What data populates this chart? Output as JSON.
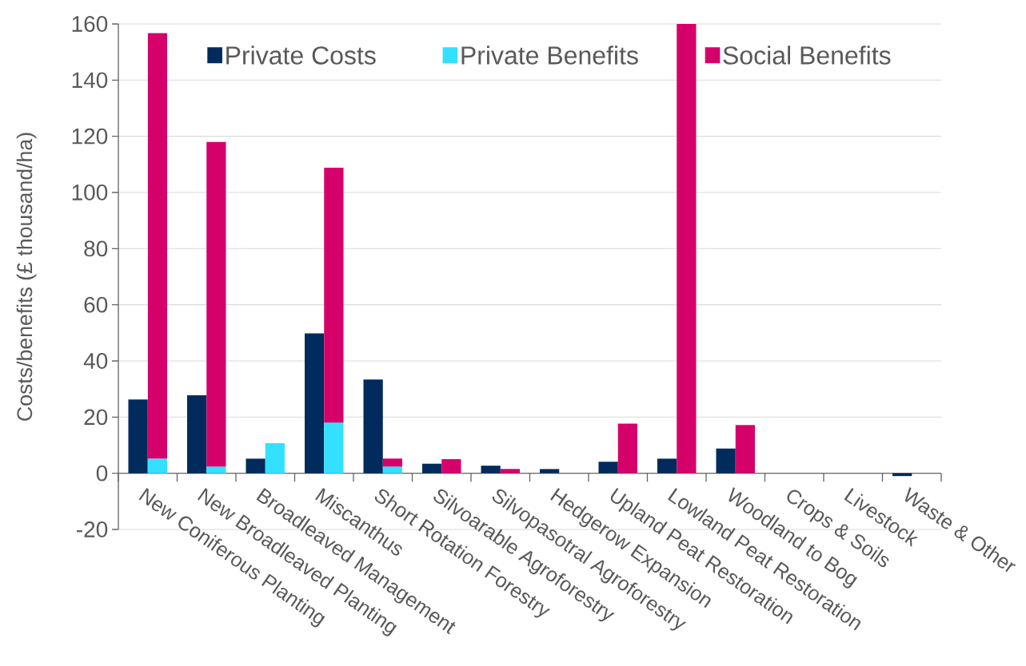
{
  "chart_data": {
    "type": "bar",
    "ylabel": "Costs/benefits (£ thousand/ha)",
    "categories": [
      "New Coniferous Planting",
      "New Broadleaved Planting",
      "Broadleaved Management",
      "Miscanthus",
      "Short Rotation Forestry",
      "Silvoarable Agroforestry",
      "Silvopasotral Agroforestry",
      "Hedgerow Expansion",
      "Upland Peat Restoration",
      "Lowland Peat Restoration",
      "Woodland to Bog",
      "Crops & Soils",
      "Livestock",
      "Waste & Other"
    ],
    "series": [
      {
        "name": "Private Costs",
        "color": "#002b5c",
        "values": [
          26.3,
          27.8,
          5.2,
          49.8,
          33.4,
          3.4,
          2.7,
          1.5,
          4.1,
          5.2,
          8.8,
          0,
          0,
          -1.0
        ]
      },
      {
        "name": "Private Benefits",
        "color": "#33e0ff",
        "values": [
          5.2,
          2.4,
          10.7,
          18.0,
          2.4,
          0,
          0,
          0,
          0,
          0,
          0,
          0,
          0,
          0
        ]
      },
      {
        "name": "Social Benefits",
        "color": "#d6006b",
        "values": [
          151.5,
          115.6,
          0,
          90.8,
          2.8,
          5.0,
          1.5,
          0,
          17.7,
          160,
          17.2,
          0,
          0,
          0
        ],
        "base": [
          5.2,
          2.4,
          null,
          18.0,
          2.4,
          0,
          0,
          null,
          0,
          0,
          0,
          null,
          null,
          null
        ]
      }
    ],
    "ylim": [
      -20,
      160
    ],
    "yticks": [
      -20,
      0,
      20,
      40,
      60,
      80,
      100,
      120,
      140,
      160
    ],
    "grid": "y",
    "legend": "top"
  }
}
